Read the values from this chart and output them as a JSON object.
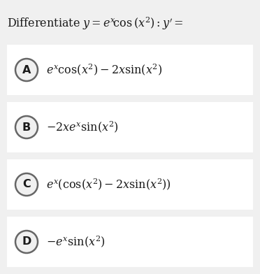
{
  "title": "Differentiate $y=e^x\\!\\cos\\left(x^2\\right): y'=$",
  "options": [
    {
      "label": "A",
      "formula": "$e^x\\cos(x^2) - 2x\\sin(x^2)$"
    },
    {
      "label": "B",
      "formula": "$-2xe^x\\sin(x^2)$"
    },
    {
      "label": "C",
      "formula": "$e^x\\left(\\cos(x^2) - 2x\\sin(x^2)\\right)$"
    },
    {
      "label": "D",
      "formula": "$-e^x\\sin(x^2)$"
    }
  ],
  "bg_color": "#f0f0f0",
  "box_color": "#ffffff",
  "circle_bg": "#f0f0f0",
  "text_color": "#1a1a1a",
  "title_fontsize": 11.5,
  "option_fontsize": 11.5,
  "label_fontsize": 11.5
}
